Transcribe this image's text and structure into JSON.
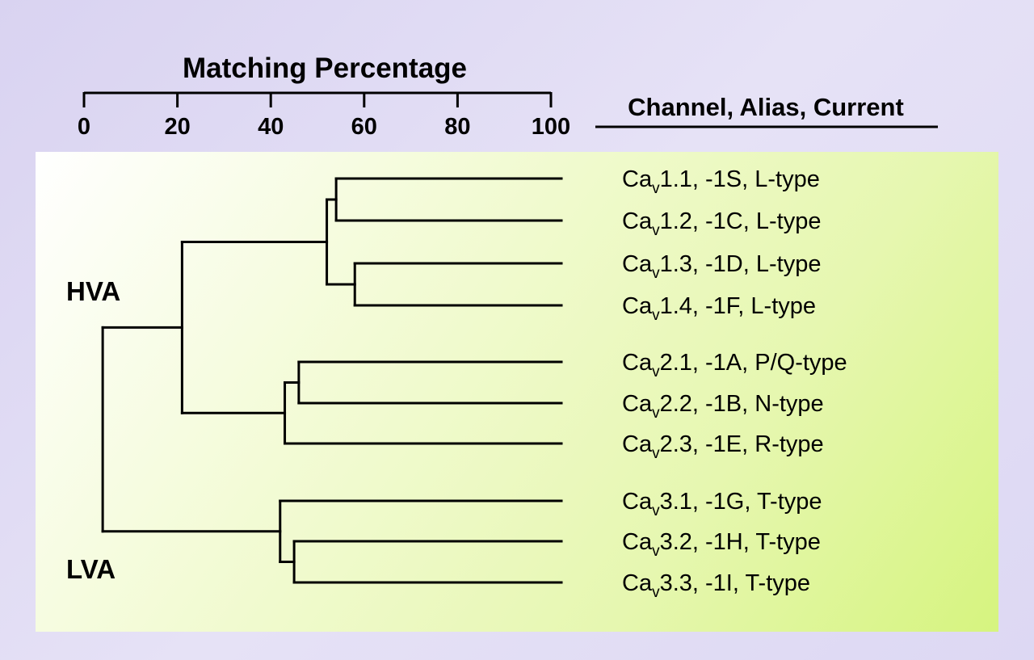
{
  "axis": {
    "title": "Matching Percentage",
    "ticks": [
      "0",
      "20",
      "40",
      "60",
      "80",
      "100"
    ],
    "range": [
      0,
      100
    ]
  },
  "column_header": "Channel, Alias, Current",
  "group_labels": {
    "hva": "HVA",
    "lva": "LVA"
  },
  "leaves": [
    {
      "prefix": "Ca",
      "sub": "v",
      "rest": "1.1, -1S, L-type"
    },
    {
      "prefix": "Ca",
      "sub": "v",
      "rest": "1.2, -1C, L-type"
    },
    {
      "prefix": "Ca",
      "sub": "v",
      "rest": "1.3, -1D, L-type"
    },
    {
      "prefix": "Ca",
      "sub": "v",
      "rest": "1.4, -1F, L-type"
    },
    {
      "prefix": "Ca",
      "sub": "v",
      "rest": "2.1, -1A, P/Q-type"
    },
    {
      "prefix": "Ca",
      "sub": "v",
      "rest": "2.2, -1B, N-type"
    },
    {
      "prefix": "Ca",
      "sub": "v",
      "rest": "2.3, -1E, R-type"
    },
    {
      "prefix": "Ca",
      "sub": "v",
      "rest": "3.1, -1G, T-type"
    },
    {
      "prefix": "Ca",
      "sub": "v",
      "rest": "3.2, -1H, T-type"
    },
    {
      "prefix": "Ca",
      "sub": "v",
      "rest": "3.3, -1I, T-type"
    }
  ],
  "tree": {
    "match": 4,
    "children": [
      {
        "match": 21,
        "children": [
          {
            "match": 52,
            "children": [
              {
                "match": 54,
                "children": [
                  0,
                  1
                ]
              },
              {
                "match": 58,
                "children": [
                  2,
                  3
                ]
              }
            ]
          },
          {
            "match": 43,
            "children": [
              {
                "match": 46,
                "children": [
                  4,
                  5
                ]
              },
              6
            ]
          }
        ]
      },
      {
        "match": 42,
        "children": [
          7,
          {
            "match": 45,
            "children": [
              8,
              9
            ]
          }
        ]
      }
    ]
  }
}
